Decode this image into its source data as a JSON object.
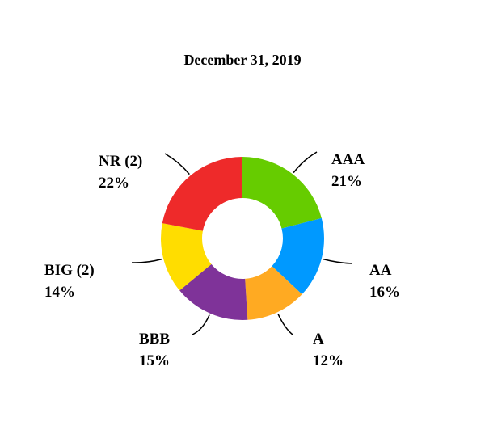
{
  "chart_data": {
    "type": "donut",
    "title": "December 31, 2019",
    "categories": [
      "AAA",
      "AA",
      "A",
      "BBB",
      "BIG (2)",
      "NR (2)"
    ],
    "values": [
      21,
      16,
      12,
      15,
      14,
      22
    ],
    "value_labels": [
      "21%",
      "16%",
      "12%",
      "15%",
      "14%",
      "22%"
    ],
    "colors": [
      "#66cc00",
      "#0099ff",
      "#ffaa22",
      "#7f3399",
      "#ffdd00",
      "#ee2a2a"
    ]
  }
}
